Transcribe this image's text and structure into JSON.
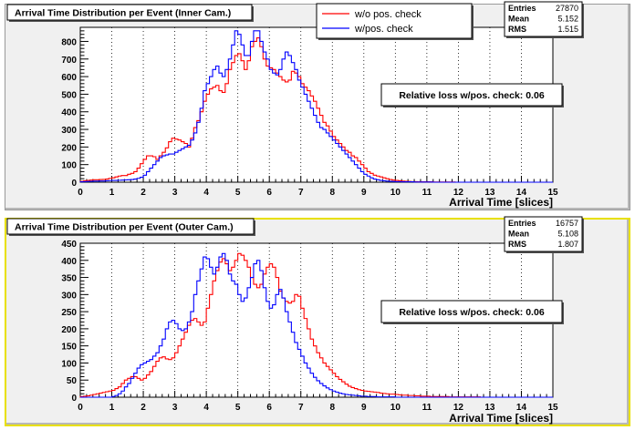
{
  "chart_data": [
    {
      "type": "line",
      "title": "Arrival Time Distribution per Event (Inner Cam.)",
      "xlabel": "Arrival Time [slices]",
      "ylabel": "",
      "xlim": [
        0,
        15
      ],
      "ylim": [
        0,
        880
      ],
      "x_ticks": [
        "0",
        "1",
        "2",
        "3",
        "4",
        "5",
        "6",
        "7",
        "8",
        "9",
        "10",
        "11",
        "12",
        "13",
        "14",
        "15"
      ],
      "y_ticks": [
        "0",
        "100",
        "200",
        "300",
        "400",
        "500",
        "600",
        "700",
        "800"
      ],
      "grid": "vertical dotted",
      "legend_position": "top-center",
      "stats": {
        "rows": [
          {
            "label": "Entries",
            "value": "27870"
          },
          {
            "label": "Mean",
            "value": "5.152"
          },
          {
            "label": "RMS",
            "value": "1.515"
          }
        ]
      },
      "annotation": "Relative loss w/pos. check: 0.06",
      "bin_width": 0.1,
      "series": [
        {
          "name": "w/o pos. check",
          "color": "#ff0000",
          "values": [
            5,
            8,
            10,
            12,
            14,
            14,
            15,
            16,
            18,
            22,
            25,
            30,
            35,
            38,
            38,
            45,
            50,
            60,
            80,
            105,
            130,
            150,
            150,
            145,
            130,
            150,
            170,
            195,
            230,
            250,
            245,
            240,
            230,
            220,
            200,
            250,
            310,
            350,
            400,
            460,
            500,
            530,
            540,
            550,
            520,
            510,
            560,
            640,
            680,
            720,
            730,
            690,
            640,
            690,
            770,
            800,
            820,
            770,
            700,
            660,
            650,
            640,
            620,
            600,
            580,
            570,
            580,
            630,
            620,
            600,
            560,
            540,
            520,
            490,
            460,
            420,
            380,
            340,
            320,
            290,
            260,
            240,
            220,
            200,
            180,
            170,
            150,
            140,
            120,
            100,
            80,
            60,
            50,
            40,
            35,
            30,
            25,
            20,
            15,
            12,
            10,
            8,
            6,
            5,
            4,
            3,
            3,
            2,
            2,
            2,
            2,
            2,
            1,
            1,
            1,
            1,
            1,
            1,
            1,
            0,
            0,
            0,
            0,
            0,
            0,
            0,
            0,
            0,
            0,
            0,
            0,
            0,
            0,
            0,
            0,
            0,
            0,
            0,
            0,
            0,
            0,
            0,
            0,
            0,
            0,
            0,
            0,
            0,
            0,
            0
          ]
        },
        {
          "name": "w/pos. check",
          "color": "#0000ff",
          "values": [
            2,
            3,
            4,
            5,
            6,
            6,
            7,
            7,
            8,
            9,
            10,
            10,
            11,
            12,
            13,
            14,
            15,
            18,
            22,
            28,
            40,
            60,
            80,
            100,
            120,
            140,
            150,
            155,
            160,
            160,
            170,
            180,
            190,
            200,
            210,
            240,
            280,
            340,
            420,
            520,
            560,
            600,
            640,
            660,
            620,
            600,
            640,
            700,
            780,
            860,
            840,
            780,
            720,
            720,
            800,
            860,
            860,
            800,
            740,
            700,
            640,
            620,
            610,
            640,
            700,
            740,
            720,
            680,
            640,
            580,
            540,
            500,
            460,
            420,
            380,
            340,
            310,
            300,
            280,
            260,
            240,
            220,
            200,
            180,
            160,
            140,
            120,
            100,
            80,
            60,
            45,
            35,
            25,
            18,
            14,
            10,
            8,
            6,
            5,
            4,
            3,
            3,
            2,
            2,
            2,
            2,
            1,
            1,
            1,
            1,
            1,
            1,
            0,
            0,
            0,
            0,
            0,
            0,
            0,
            0,
            0,
            0,
            0,
            0,
            0,
            0,
            0,
            0,
            0,
            0,
            0,
            0,
            0,
            0,
            0,
            0,
            0,
            0,
            0,
            0,
            0,
            0,
            0,
            0,
            0,
            0,
            0,
            0,
            0,
            0
          ]
        }
      ]
    },
    {
      "type": "line",
      "title": "Arrival Time Distribution per Event (Outer Cam.)",
      "xlabel": "Arrival Time [slices]",
      "ylabel": "",
      "xlim": [
        0,
        15
      ],
      "ylim": [
        0,
        450
      ],
      "x_ticks": [
        "0",
        "1",
        "2",
        "3",
        "4",
        "5",
        "6",
        "7",
        "8",
        "9",
        "10",
        "11",
        "12",
        "13",
        "14",
        "15"
      ],
      "y_ticks": [
        "0",
        "50",
        "100",
        "150",
        "200",
        "250",
        "300",
        "350",
        "400",
        "450"
      ],
      "grid": "vertical dotted",
      "legend_position": "none",
      "stats": {
        "rows": [
          {
            "label": "Entries",
            "value": "16757"
          },
          {
            "label": "Mean",
            "value": "5.108"
          },
          {
            "label": "RMS",
            "value": "1.807"
          }
        ]
      },
      "annotation": "Relative loss w/pos. check: 0.06",
      "bin_width": 0.1,
      "series": [
        {
          "name": "w/o pos. check",
          "color": "#ff0000",
          "values": [
            2,
            3,
            4,
            6,
            8,
            10,
            12,
            14,
            16,
            18,
            20,
            25,
            30,
            40,
            50,
            55,
            60,
            60,
            55,
            50,
            55,
            65,
            75,
            90,
            105,
            115,
            118,
            112,
            110,
            115,
            130,
            150,
            170,
            190,
            210,
            225,
            230,
            220,
            210,
            220,
            260,
            300,
            340,
            370,
            395,
            405,
            390,
            370,
            380,
            400,
            420,
            415,
            400,
            380,
            350,
            330,
            320,
            330,
            360,
            380,
            390,
            380,
            350,
            310,
            290,
            280,
            275,
            280,
            300,
            295,
            260,
            230,
            200,
            170,
            150,
            130,
            115,
            100,
            90,
            80,
            70,
            60,
            52,
            45,
            38,
            32,
            28,
            25,
            22,
            20,
            18,
            17,
            16,
            15,
            14,
            12,
            11,
            10,
            9,
            9,
            8,
            7,
            6,
            6,
            5,
            5,
            4,
            4,
            3,
            3,
            3,
            2,
            2,
            2,
            2,
            2,
            2,
            1,
            1,
            1,
            1,
            1,
            1,
            1,
            1,
            1,
            1,
            0,
            0,
            0,
            0,
            0,
            0,
            0,
            0,
            0,
            0,
            0,
            0,
            0,
            0,
            0,
            0,
            0,
            0,
            0,
            0,
            0,
            0,
            0
          ]
        },
        {
          "name": "w/pos. check",
          "color": "#0000ff",
          "values": [
            0,
            0,
            0,
            0,
            0,
            0,
            0,
            0,
            0,
            0,
            2,
            5,
            10,
            18,
            30,
            40,
            55,
            70,
            85,
            95,
            100,
            105,
            110,
            120,
            130,
            150,
            170,
            200,
            220,
            225,
            215,
            200,
            195,
            200,
            220,
            250,
            300,
            340,
            375,
            410,
            405,
            380,
            360,
            380,
            410,
            420,
            400,
            360,
            340,
            330,
            300,
            280,
            290,
            320,
            350,
            390,
            400,
            370,
            320,
            280,
            260,
            270,
            300,
            315,
            290,
            250,
            220,
            190,
            160,
            140,
            120,
            100,
            85,
            70,
            58,
            48,
            40,
            33,
            27,
            22,
            18,
            15,
            12,
            10,
            8,
            7,
            6,
            5,
            4,
            3,
            3,
            2,
            2,
            2,
            1,
            1,
            1,
            1,
            1,
            1,
            0,
            0,
            0,
            0,
            0,
            0,
            0,
            0,
            0,
            0,
            0,
            0,
            0,
            0,
            0,
            0,
            0,
            0,
            0,
            0,
            0,
            0,
            0,
            0,
            0,
            0,
            0,
            0,
            0,
            0,
            0,
            0,
            0,
            0,
            0,
            0,
            0,
            0,
            0,
            0,
            0,
            0,
            0,
            0,
            0,
            0,
            0,
            0,
            0,
            0
          ]
        }
      ]
    }
  ]
}
